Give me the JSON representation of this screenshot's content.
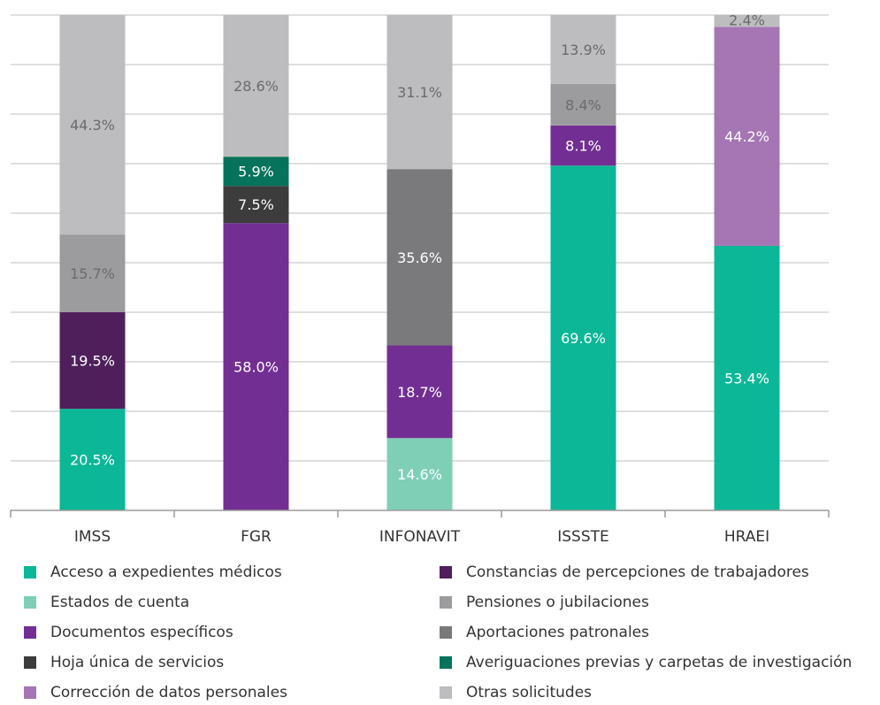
{
  "chart_data": {
    "type": "bar",
    "stacked": true,
    "ylim": [
      0,
      100
    ],
    "grid": true,
    "legend_position": "bottom",
    "categories": [
      "IMSS",
      "FGR",
      "INFONAVIT",
      "ISSSTE",
      "HRAEI"
    ],
    "series": [
      {
        "name": "Acceso a expedientes médicos",
        "color": "#0bb797",
        "values": [
          20.5,
          0,
          0,
          69.6,
          53.4
        ],
        "labels": [
          "20.5%",
          "",
          "",
          "69.6%",
          "53.4%"
        ]
      },
      {
        "name": "Estados de cuenta",
        "color": "#7fcfb7",
        "values": [
          0,
          0,
          14.6,
          0,
          0
        ],
        "labels": [
          "",
          "",
          "14.6%",
          "",
          ""
        ]
      },
      {
        "name": "Documentos específicos",
        "color": "#722e93",
        "values": [
          0,
          58.0,
          18.7,
          8.1,
          0
        ],
        "labels": [
          "",
          "58.0%",
          "18.7%",
          "8.1%",
          ""
        ]
      },
      {
        "name": "Constancias de percepciones de trabajadores",
        "color": "#4f1f5c",
        "values": [
          19.5,
          0,
          0,
          0,
          0
        ],
        "labels": [
          "19.5%",
          "",
          "",
          "",
          ""
        ]
      },
      {
        "name": "Pensiones o jubilaciones",
        "color": "#9c9c9e",
        "values": [
          15.7,
          0,
          0,
          8.4,
          0
        ],
        "labels": [
          "15.7%",
          "",
          "",
          "8.4%",
          ""
        ]
      },
      {
        "name": "Aportaciones patronales",
        "color": "#7a7a7c",
        "values": [
          0,
          0,
          35.6,
          0,
          0
        ],
        "labels": [
          "",
          "",
          "35.6%",
          "",
          ""
        ]
      },
      {
        "name": "Hoja única de servicios",
        "color": "#3c3c3c",
        "values": [
          0,
          7.5,
          0,
          0,
          0
        ],
        "labels": [
          "",
          "7.5%",
          "",
          "",
          ""
        ]
      },
      {
        "name": "Averiguaciones previas y carpetas de investigación",
        "color": "#06735c",
        "values": [
          0,
          5.9,
          0,
          0,
          0
        ],
        "labels": [
          "",
          "5.9%",
          "",
          "",
          ""
        ]
      },
      {
        "name": "Corrección de datos personales",
        "color": "#a575b4",
        "values": [
          0,
          0,
          0,
          0,
          44.2
        ],
        "labels": [
          "",
          "",
          "",
          "",
          "44.2%"
        ]
      },
      {
        "name": "Otras solicitudes",
        "color": "#bdbdbf",
        "values": [
          44.3,
          28.6,
          31.1,
          13.9,
          2.4
        ],
        "labels": [
          "44.3%",
          "28.6%",
          "31.1%",
          "13.9%",
          "2.4%"
        ]
      }
    ],
    "legend_order": [
      "Acceso a expedientes médicos",
      "Estados de cuenta",
      "Documentos específicos",
      "Hoja única de servicios",
      "Corrección de datos personales",
      "Constancias de percepciones de trabajadores",
      "Pensiones o jubilaciones",
      "Aportaciones patronales",
      "Averiguaciones previas y carpetas de investigación",
      "Otras solicitudes"
    ]
  }
}
